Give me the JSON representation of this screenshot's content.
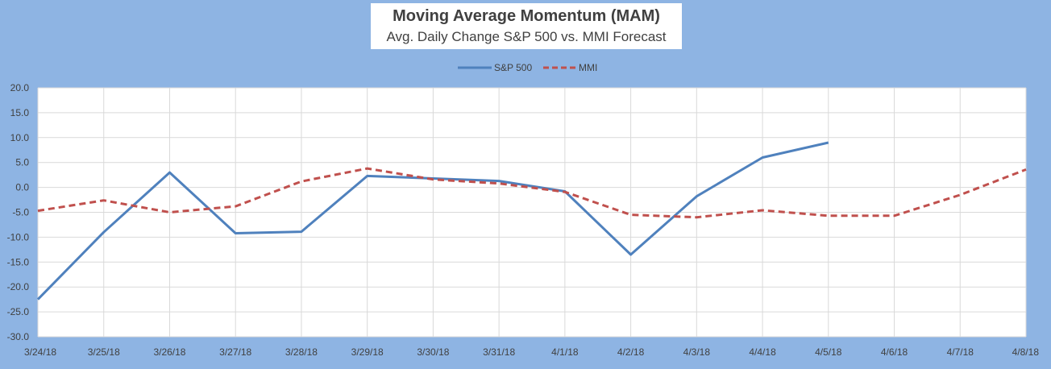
{
  "chart_data": {
    "type": "line",
    "title": "Moving Average Momentum (MAM)",
    "subtitle": "Avg. Daily Change S&P 500 vs. MMI Forecast",
    "categories": [
      "3/24/18",
      "3/25/18",
      "3/26/18",
      "3/27/18",
      "3/28/18",
      "3/29/18",
      "3/30/18",
      "3/31/18",
      "4/1/18",
      "4/2/18",
      "4/3/18",
      "4/4/18",
      "4/5/18",
      "4/6/18",
      "4/7/18",
      "4/8/18"
    ],
    "y_ticks": [
      "20.0",
      "15.0",
      "10.0",
      "5.0",
      "0.0",
      "-5.0",
      "-10.0",
      "-15.0",
      "-20.0",
      "-25.0",
      "-30.0"
    ],
    "ylim": [
      -30,
      20
    ],
    "grid": true,
    "legend_position": "top",
    "series": [
      {
        "name": "S&P 500",
        "color": "#4f81bd",
        "style": "solid",
        "values": [
          -22.5,
          -9.0,
          3.0,
          -9.2,
          -8.9,
          2.3,
          1.8,
          1.3,
          -0.8,
          -13.5,
          -1.8,
          6.0,
          9.0,
          null,
          null,
          null
        ]
      },
      {
        "name": "MMI",
        "color": "#c0504d",
        "style": "dashed",
        "values": [
          -4.7,
          -2.6,
          -5.0,
          -3.8,
          1.2,
          3.8,
          1.6,
          0.8,
          -0.9,
          -5.5,
          -6.0,
          -4.6,
          -5.7,
          -5.7,
          -1.5,
          3.6
        ]
      }
    ]
  }
}
